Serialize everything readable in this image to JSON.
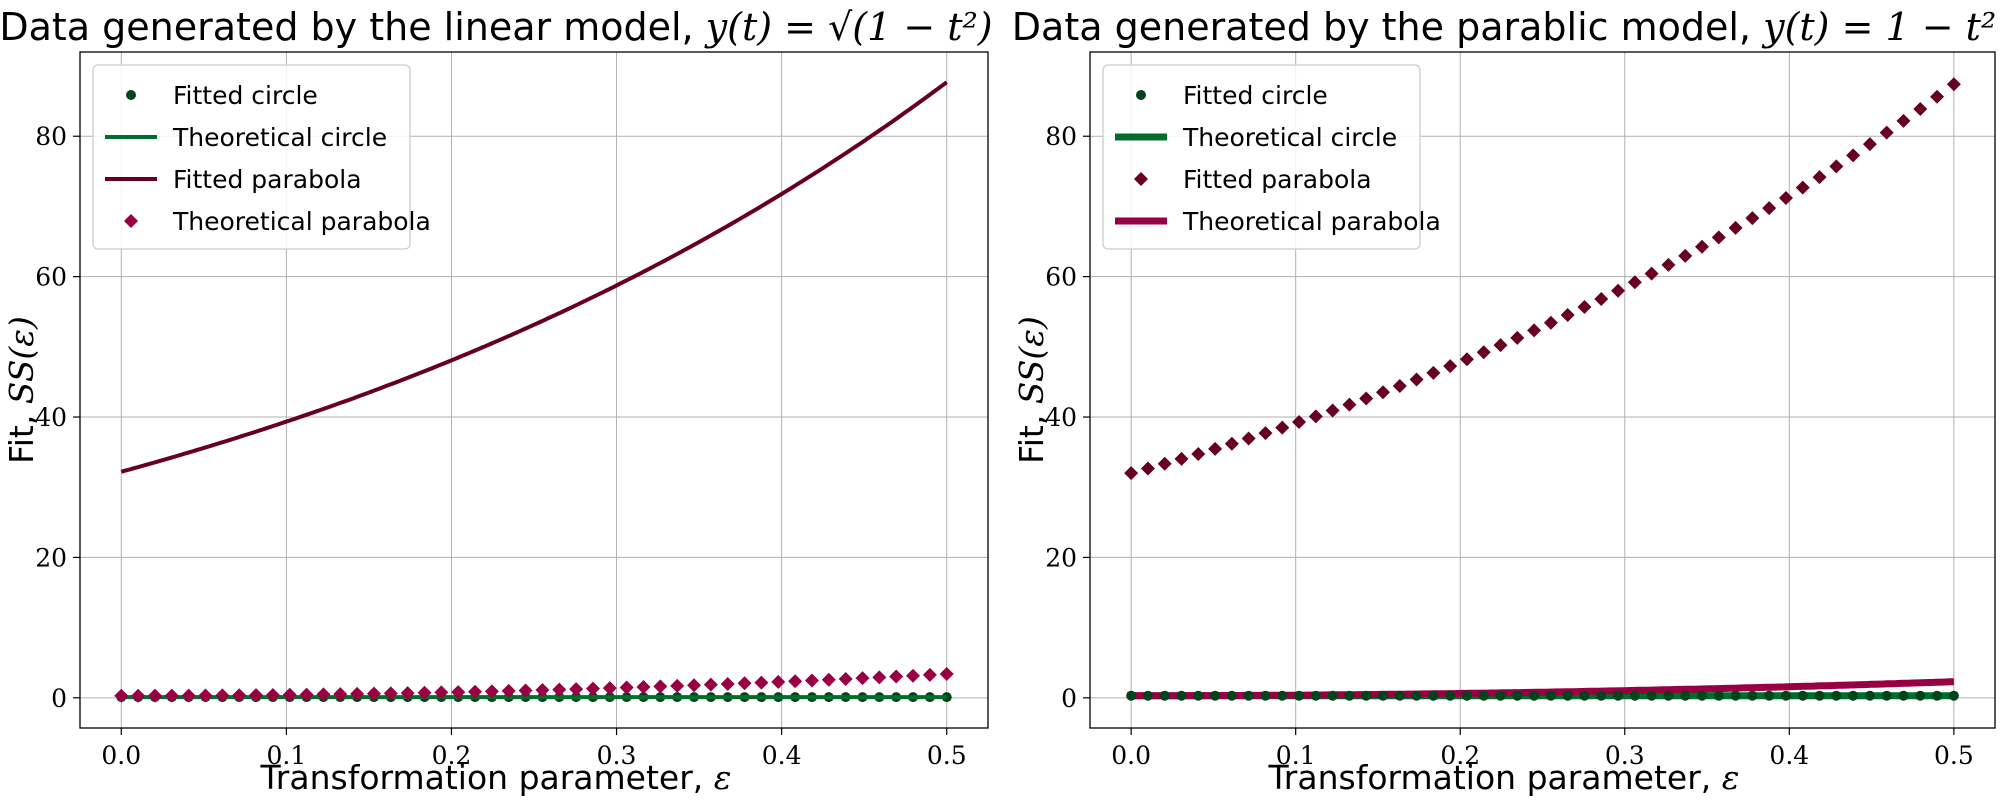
{
  "figure": {
    "background": "#ffffff",
    "grid_color": "#b0b0b0"
  },
  "colors": {
    "fitted_circle": "#00441b",
    "theoretical_circle": "#006d2c",
    "fitted_parabola": "#67001f",
    "theoretical_parabola": "#980043"
  },
  "chart_data": [
    {
      "type": "line",
      "title_text": "Data generated by the linear model, ",
      "title_math": "y(t) = √(1 − t²)",
      "xlabel_text": "Transformation parameter, ",
      "xlabel_math": "ε",
      "ylabel_text": "Fit, ",
      "ylabel_math": "SS(ε)",
      "xlim": [
        -0.025,
        0.525
      ],
      "ylim": [
        -4.3,
        92.0
      ],
      "xticks": [
        0.0,
        0.1,
        0.2,
        0.3,
        0.4,
        0.5
      ],
      "xtick_labels": [
        "0.0",
        "0.1",
        "0.2",
        "0.3",
        "0.4",
        "0.5"
      ],
      "yticks": [
        0,
        20,
        40,
        60,
        80
      ],
      "ytick_labels": [
        "0",
        "20",
        "40",
        "60",
        "80"
      ],
      "grid": true,
      "legend_position": "top-left",
      "legend": [
        {
          "label": "Fitted circle",
          "marker": "circle",
          "line": false,
          "color_key": "fitted_circle"
        },
        {
          "label": "Theoretical circle",
          "marker": "none",
          "line": true,
          "color_key": "theoretical_circle"
        },
        {
          "label": "Fitted parabola",
          "marker": "none",
          "line": true,
          "color_key": "fitted_parabola"
        },
        {
          "label": "Theoretical parabola",
          "marker": "diamond",
          "line": false,
          "color_key": "theoretical_parabola"
        }
      ],
      "x_range": [
        0.0,
        0.5
      ],
      "x_count": 50,
      "series": [
        {
          "name": "Fitted circle",
          "style": "markers",
          "marker": "circle",
          "color_key": "fitted_circle",
          "y_at_0": 0.1,
          "y_at_end": 0.1,
          "curve": "linear"
        },
        {
          "name": "Theoretical circle",
          "style": "line",
          "color_key": "theoretical_circle",
          "y_at_0": 0.1,
          "y_at_end": 0.1,
          "curve": "linear"
        },
        {
          "name": "Fitted parabola",
          "style": "line",
          "color_key": "fitted_parabola",
          "y_at_0": 32.2,
          "y_at_end": 87.7,
          "curve": "exponential"
        },
        {
          "name": "Theoretical parabola",
          "style": "markers",
          "marker": "diamond",
          "color_key": "theoretical_parabola",
          "y_at_0": 0.3,
          "y_at_end": 3.4,
          "curve": "quadratic"
        }
      ]
    },
    {
      "type": "line",
      "title_text": "Data generated by the parablic model, ",
      "title_math": "y(t) = 1 − t²",
      "xlabel_text": "Transformation parameter, ",
      "xlabel_math": "ε",
      "ylabel_text": "Fit, ",
      "ylabel_math": "SS(ε)",
      "xlim": [
        -0.025,
        0.525
      ],
      "ylim": [
        -4.3,
        92.0
      ],
      "xticks": [
        0.0,
        0.1,
        0.2,
        0.3,
        0.4,
        0.5
      ],
      "xtick_labels": [
        "0.0",
        "0.1",
        "0.2",
        "0.3",
        "0.4",
        "0.5"
      ],
      "yticks": [
        0,
        20,
        40,
        60,
        80
      ],
      "ytick_labels": [
        "0",
        "20",
        "40",
        "60",
        "80"
      ],
      "grid": true,
      "legend_position": "top-left",
      "legend": [
        {
          "label": "Fitted circle",
          "marker": "circle",
          "line": false,
          "color_key": "fitted_circle"
        },
        {
          "label": "Theoretical circle",
          "marker": "none",
          "line": true,
          "thick": true,
          "color_key": "theoretical_circle"
        },
        {
          "label": "Fitted parabola",
          "marker": "diamond",
          "line": false,
          "color_key": "fitted_parabola"
        },
        {
          "label": "Theoretical parabola",
          "marker": "none",
          "line": true,
          "thick": true,
          "color_key": "theoretical_parabola"
        }
      ],
      "x_range": [
        0.0,
        0.5
      ],
      "x_count": 50,
      "series": [
        {
          "name": "Theoretical circle",
          "style": "line",
          "thick": true,
          "color_key": "theoretical_circle",
          "y_at_0": 0.3,
          "y_at_end": 0.3,
          "curve": "linear"
        },
        {
          "name": "Theoretical parabola",
          "style": "line",
          "thick": true,
          "color_key": "theoretical_parabola",
          "y_at_0": 0.3,
          "y_at_end": 2.3,
          "curve": "quadratic"
        },
        {
          "name": "Fitted circle",
          "style": "markers",
          "marker": "circle",
          "color_key": "fitted_circle",
          "y_at_0": 0.3,
          "y_at_end": 0.3,
          "curve": "linear"
        },
        {
          "name": "Fitted parabola",
          "style": "markers",
          "marker": "diamond",
          "color_key": "fitted_parabola",
          "y_at_0": 32.0,
          "y_at_end": 87.4,
          "curve": "exponential"
        }
      ]
    }
  ]
}
